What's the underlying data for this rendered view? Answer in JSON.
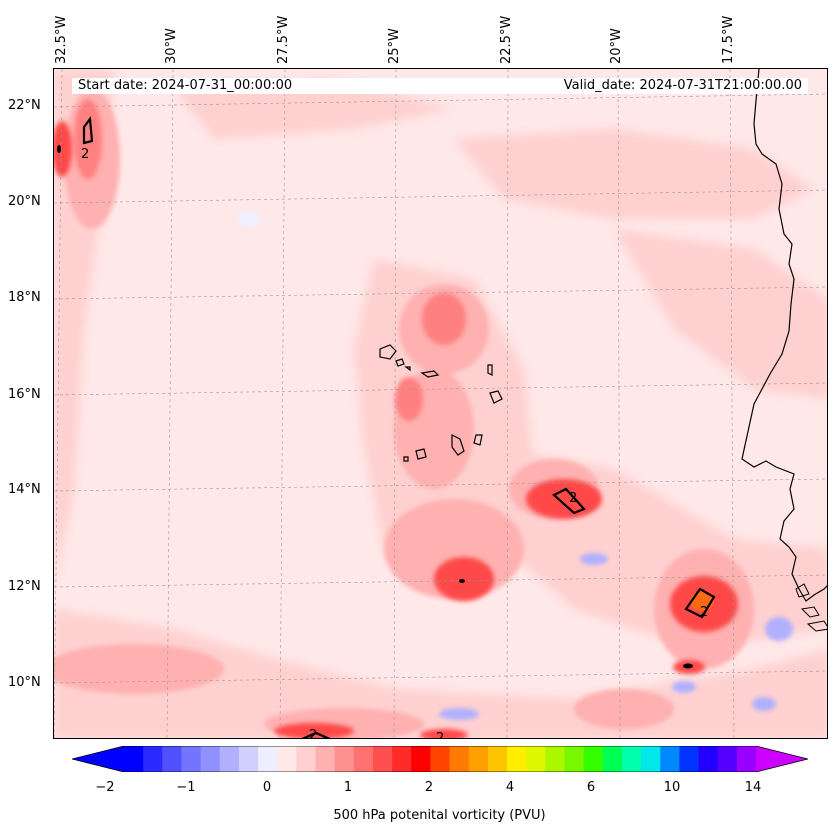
{
  "map": {
    "start_label": "Start date: 2024-07-31_00:00:00",
    "valid_label": "Valid_date: 2024-07-31T21:00:00.00",
    "longitudes": [
      "32.5°W",
      "30°W",
      "27.5°W",
      "25°W",
      "22.5°W",
      "20°W",
      "17.5°W"
    ],
    "latitudes": [
      "22°N",
      "20°N",
      "18°N",
      "16°N",
      "14°N",
      "12°N",
      "10°N"
    ],
    "contour_labels": [
      "2",
      "2",
      "2",
      "2",
      "2"
    ],
    "colors": {
      "ocean_base": "#ffe8e8",
      "light_pink": "#ffd0d0",
      "pink": "#ffb0b0",
      "salmon": "#ff8080",
      "red": "#ff4a4a",
      "deep_red": "#ff1a1a",
      "orange": "#ff6a10",
      "light_blue": "#eef0ff",
      "blue": "#b0b0ff",
      "coast": "#000000"
    }
  },
  "colorbar": {
    "label": "500 hPa potenital vorticity (PVU)",
    "ticks": [
      "−2",
      "−1",
      "0",
      "1",
      "2",
      "4",
      "6",
      "10",
      "14"
    ],
    "colors": [
      "#0000ff",
      "#2a2aff",
      "#5050ff",
      "#7474ff",
      "#9090ff",
      "#b0b0ff",
      "#d0d0ff",
      "#eeeeff",
      "#ffe8e8",
      "#ffd0d0",
      "#ffb0b0",
      "#ff9090",
      "#ff7070",
      "#ff5050",
      "#ff2a2a",
      "#ff0000",
      "#ff4500",
      "#ff7a00",
      "#ff9f00",
      "#ffc400",
      "#ffee00",
      "#ddf700",
      "#aaf700",
      "#77f700",
      "#33ff00",
      "#00ff55",
      "#00ffaa",
      "#00e8e8",
      "#0088ff",
      "#0033ff",
      "#2200ff",
      "#5500ff",
      "#9900ff"
    ],
    "extend_low_color": "#0000ff",
    "extend_high_color": "#cc00ff"
  }
}
